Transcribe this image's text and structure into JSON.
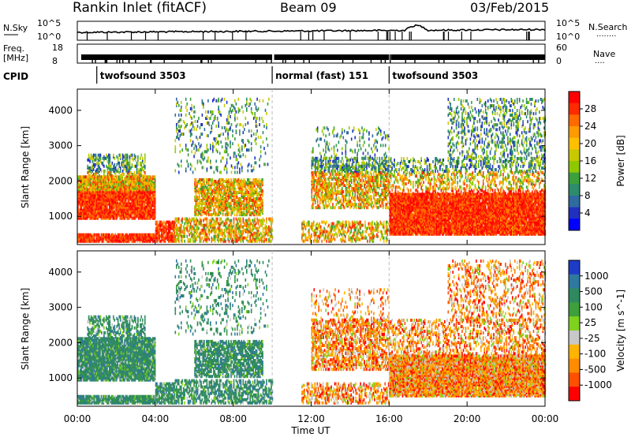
{
  "header": {
    "radar": "Rankin Inlet (fitACF)",
    "beam": "Beam 09",
    "date": "03/Feb/2015"
  },
  "noise_panel": {
    "left_label": "N.Sky",
    "right_label": "N.Search",
    "right_dots": "........",
    "ticks": [
      "10^5",
      "10^0"
    ]
  },
  "freq_panel": {
    "label_line1": "Freq.",
    "label_line2": "[MHz]",
    "left_ticks": [
      "18",
      "8"
    ],
    "right_label": "Nave",
    "right_dots": "....",
    "right_ticks": [
      "60",
      "0"
    ]
  },
  "cpid": {
    "label": "CPID",
    "segments": [
      {
        "name": "twofsound 3503",
        "start_hour": 1.0,
        "end_hour": 10.0
      },
      {
        "name": "normal (fast) 151",
        "start_hour": 10.0,
        "end_hour": 16.0
      },
      {
        "name": "twofsound 3503",
        "start_hour": 16.0,
        "end_hour": 24.0
      }
    ]
  },
  "chart_data": {
    "type": "heatmap",
    "x_label": "Time UT",
    "x_ticks": [
      "00:00",
      "04:00",
      "08:00",
      "12:00",
      "16:00",
      "20:00",
      "00:00"
    ],
    "x_range_hours": [
      0,
      24
    ],
    "y_label": "Slant Range [km]",
    "y_ticks": [
      1000,
      2000,
      3000,
      4000
    ],
    "y_range_km": [
      200,
      4600
    ],
    "dashed_lines_hours": [
      10.0,
      16.0
    ],
    "panels": [
      {
        "parameter": "Power",
        "unit": "[dB]",
        "colorbar_ticks": [
          "28",
          "24",
          "20",
          "16",
          "12",
          "8",
          "4"
        ],
        "colors_top_to_bottom": [
          "#ff0000",
          "#ff2a00",
          "#ff6a00",
          "#ff9a00",
          "#ffc000",
          "#c8c800",
          "#8ec800",
          "#3ca03c",
          "#2c8c6c",
          "#2f6aa0",
          "#2030c0",
          "#0000ff"
        ]
      },
      {
        "parameter": "Velocity",
        "unit": "[m s^-1]",
        "colorbar_ticks": [
          "1000",
          "500",
          "100",
          "25",
          "-25",
          "-100",
          "-500",
          "-1000"
        ],
        "colors_top_to_bottom": [
          "#1e3cc8",
          "#2f78a0",
          "#2e8a5e",
          "#3ea03c",
          "#7ed21e",
          "#c8c8c8",
          "#ffb400",
          "#ff8c00",
          "#ff5000",
          "#ff0000"
        ]
      }
    ]
  }
}
